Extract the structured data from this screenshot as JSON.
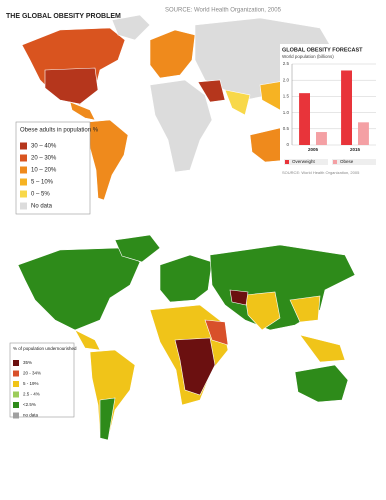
{
  "top_map": {
    "title": "THE GLOBAL OBESITY PROBLEM",
    "source": "SOURCE: World Health Organization, 2005",
    "legend": {
      "title": "Obese adults in population %",
      "items": [
        {
          "label": "30 – 40%",
          "color": "#b5361c"
        },
        {
          "label": "20 – 30%",
          "color": "#d9541f"
        },
        {
          "label": "10 – 20%",
          "color": "#ef8a1c"
        },
        {
          "label": "5 – 10%",
          "color": "#f6b323"
        },
        {
          "label": "0 – 5%",
          "color": "#f8d84a"
        },
        {
          "label": "No data",
          "color": "#dcdcdc"
        }
      ]
    }
  },
  "chart_data": {
    "type": "bar",
    "title": "GLOBAL OBESITY FORECAST",
    "subtitle": "World population (billions)",
    "categories": [
      "2005",
      "2015"
    ],
    "series": [
      {
        "name": "Overweight",
        "color": "#e8343a",
        "values": [
          1.6,
          2.3
        ]
      },
      {
        "name": "Obese",
        "color": "#f4a0a4",
        "values": [
          0.4,
          0.7
        ]
      }
    ],
    "ylim": [
      0,
      2.5
    ],
    "yticks": [
      0,
      0.5,
      {
        "value": 1,
        "label": "1.0"
      },
      1.5,
      {
        "value": 2,
        "label": "2.0"
      },
      2.5
    ],
    "grid": true,
    "source": "SOURCE: World Health Organization, 2005"
  },
  "bottom_map": {
    "legend": {
      "title": "% of population undernourished",
      "items": [
        {
          "label": "35%",
          "color": "#6b1010"
        },
        {
          "label": "20 - 34%",
          "color": "#d8502a"
        },
        {
          "label": "5 - 19%",
          "color": "#f0c419"
        },
        {
          "label": "2.5 - 4%",
          "color": "#9ccc5a"
        },
        {
          "label": "<2.5%",
          "color": "#2e8b1a"
        },
        {
          "label": "no data",
          "color": "#a0a0a0"
        }
      ]
    }
  }
}
